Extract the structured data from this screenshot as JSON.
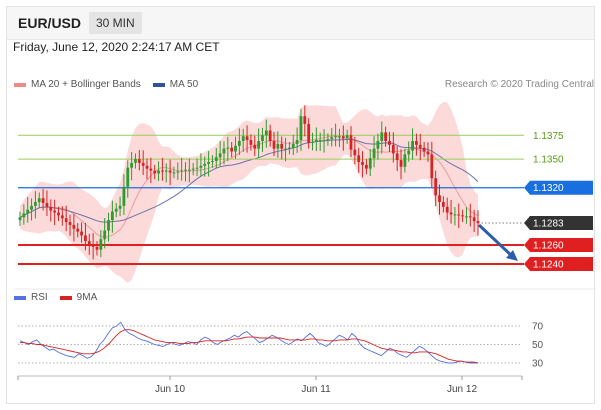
{
  "header": {
    "pair": "EUR/USD",
    "timeframe": "30 MIN"
  },
  "timestamp": "Friday, June 12, 2020 2:24:17 AM CET",
  "legend": {
    "items": [
      {
        "label": "MA 20 + Bollinger Bands",
        "color": "#ee8a8a"
      },
      {
        "label": "MA 50",
        "color": "#2f5597"
      }
    ],
    "credit": "Research © 2020 Trading Central"
  },
  "colors": {
    "bull": "#2e9b2e",
    "bear": "#d62424",
    "resistance": "#9acd5a",
    "support": "#e02020",
    "current": "#1a6fe0",
    "band": "#fbd3d3"
  },
  "chart_data": [
    {
      "type": "candlestick",
      "instrument": "EUR/USD",
      "timeframe": "30 MIN",
      "ylim": [
        1.1218,
        1.1412
      ],
      "x_ticks": [
        "Jun 10",
        "Jun 11",
        "Jun 12"
      ],
      "levels": [
        {
          "value": 1.1375,
          "label": "1.1375",
          "kind": "resistance"
        },
        {
          "value": 1.135,
          "label": "1.1350",
          "kind": "resistance"
        },
        {
          "value": 1.132,
          "label": "1.1320",
          "kind": "pivot"
        },
        {
          "value": 1.1283,
          "label": "1.1283",
          "kind": "last"
        },
        {
          "value": 1.126,
          "label": "1.1260",
          "kind": "support"
        },
        {
          "value": 1.124,
          "label": "1.1240",
          "kind": "support"
        }
      ],
      "close": [
        1.1289,
        1.1293,
        1.1297,
        1.1301,
        1.1305,
        1.1309,
        1.1304,
        1.13,
        1.1296,
        1.1294,
        1.1291,
        1.1288,
        1.1284,
        1.1281,
        1.1277,
        1.1274,
        1.127,
        1.1264,
        1.1261,
        1.1258,
        1.1255,
        1.1266,
        1.1275,
        1.1286,
        1.1295,
        1.1298,
        1.1301,
        1.1321,
        1.1341,
        1.1346,
        1.135,
        1.1346,
        1.1343,
        1.134,
        1.1338,
        1.1335,
        1.1338,
        1.1337,
        1.1338,
        1.1336,
        1.1336,
        1.1337,
        1.1338,
        1.1339,
        1.1339,
        1.134,
        1.1341,
        1.1343,
        1.1345,
        1.1347,
        1.1348,
        1.1352,
        1.1356,
        1.1361,
        1.1362,
        1.1358,
        1.1364,
        1.1369,
        1.1374,
        1.137,
        1.1365,
        1.1361,
        1.1369,
        1.1375,
        1.138,
        1.1369,
        1.1361,
        1.1366,
        1.1361,
        1.1361,
        1.1362,
        1.1366,
        1.137,
        1.1395,
        1.1387,
        1.1367,
        1.1368,
        1.137,
        1.137,
        1.137,
        1.1371,
        1.1373,
        1.1374,
        1.1374,
        1.1372,
        1.1375,
        1.136,
        1.1354,
        1.1347,
        1.1344,
        1.134,
        1.1351,
        1.1361,
        1.1369,
        1.1378,
        1.1369,
        1.1365,
        1.1356,
        1.1349,
        1.1342,
        1.1355,
        1.1359,
        1.1369,
        1.1365,
        1.1362,
        1.1358,
        1.1355,
        1.133,
        1.1312,
        1.1305,
        1.13,
        1.1294,
        1.1292,
        1.1292,
        1.1291,
        1.129,
        1.129,
        1.1289,
        1.1285,
        1.1283
      ],
      "x_axis": "Jun 10 – Jun 12, 30-minute bars",
      "y_axis": "price"
    },
    {
      "type": "line",
      "indicator": "RSI",
      "series": [
        {
          "name": "RSI",
          "color": "#5572e0",
          "values": [
            54,
            52,
            50,
            53,
            55,
            50,
            47,
            44,
            45,
            42,
            40,
            38,
            37,
            36,
            40,
            38,
            35,
            37,
            42,
            50,
            55,
            62,
            68,
            70,
            74,
            66,
            62,
            60,
            57,
            55,
            54,
            52,
            50,
            49,
            48,
            50,
            52,
            50,
            49,
            51,
            53,
            52,
            50,
            55,
            58,
            56,
            52,
            50,
            53,
            55,
            57,
            60,
            58,
            62,
            64,
            60,
            56,
            52,
            54,
            57,
            60,
            58,
            55,
            52,
            50,
            53,
            56,
            54,
            58,
            62,
            58,
            52,
            50,
            48,
            52,
            56,
            60,
            58,
            55,
            62,
            58,
            50,
            46,
            44,
            42,
            40,
            38,
            42,
            46,
            44,
            40,
            38,
            36,
            40,
            44,
            48,
            46,
            42,
            38,
            34,
            32,
            31,
            30,
            30,
            31,
            32,
            31,
            30,
            30,
            30
          ]
        },
        {
          "name": "9MA",
          "color": "#d62424",
          "values": [
            52,
            52,
            51,
            51,
            50,
            50,
            49,
            48,
            47,
            46,
            45,
            44,
            43,
            42,
            41,
            40,
            40,
            40,
            41,
            43,
            46,
            50,
            55,
            60,
            64,
            66,
            66,
            65,
            63,
            61,
            59,
            57,
            55,
            54,
            53,
            52,
            52,
            52,
            51,
            51,
            51,
            52,
            52,
            53,
            54,
            54,
            54,
            54,
            54,
            54,
            55,
            56,
            56,
            57,
            58,
            58,
            58,
            57,
            57,
            57,
            57,
            57,
            57,
            56,
            55,
            55,
            55,
            55,
            55,
            56,
            56,
            55,
            55,
            54,
            54,
            54,
            55,
            55,
            55,
            56,
            56,
            55,
            54,
            52,
            50,
            48,
            46,
            45,
            44,
            44,
            43,
            42,
            42,
            41,
            41,
            42,
            42,
            42,
            41,
            40,
            38,
            36,
            34,
            33,
            32,
            32,
            31,
            31,
            31,
            30
          ]
        }
      ],
      "ylim": [
        0,
        100
      ],
      "y_ticks": [
        "70",
        "50",
        "30"
      ]
    }
  ]
}
